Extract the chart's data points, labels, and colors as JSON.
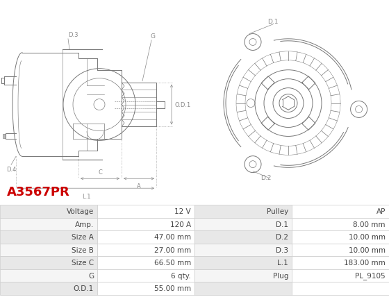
{
  "title": "A3567PR",
  "title_color": "#cc0000",
  "image_bg": "#ffffff",
  "table_data": {
    "left_labels": [
      "Voltage",
      "Amp.",
      "Size A",
      "Size B",
      "Size C",
      "G",
      "O.D.1"
    ],
    "left_values": [
      "12 V",
      "120 A",
      "47.00 mm",
      "27.00 mm",
      "66.50 mm",
      "6 qty.",
      "55.00 mm"
    ],
    "right_labels": [
      "Pulley",
      "D.1",
      "D.2",
      "D.3",
      "L.1",
      "Plug",
      ""
    ],
    "right_values": [
      "AP",
      "8.00 mm",
      "10.00 mm",
      "10.00 mm",
      "183.00 mm",
      "PL_9105",
      ""
    ]
  },
  "row_colors": [
    "#e8e8e8",
    "#f5f5f5"
  ],
  "border_color": "#cccccc",
  "text_color": "#444444",
  "lc": "#777777",
  "dim_color": "#888888"
}
